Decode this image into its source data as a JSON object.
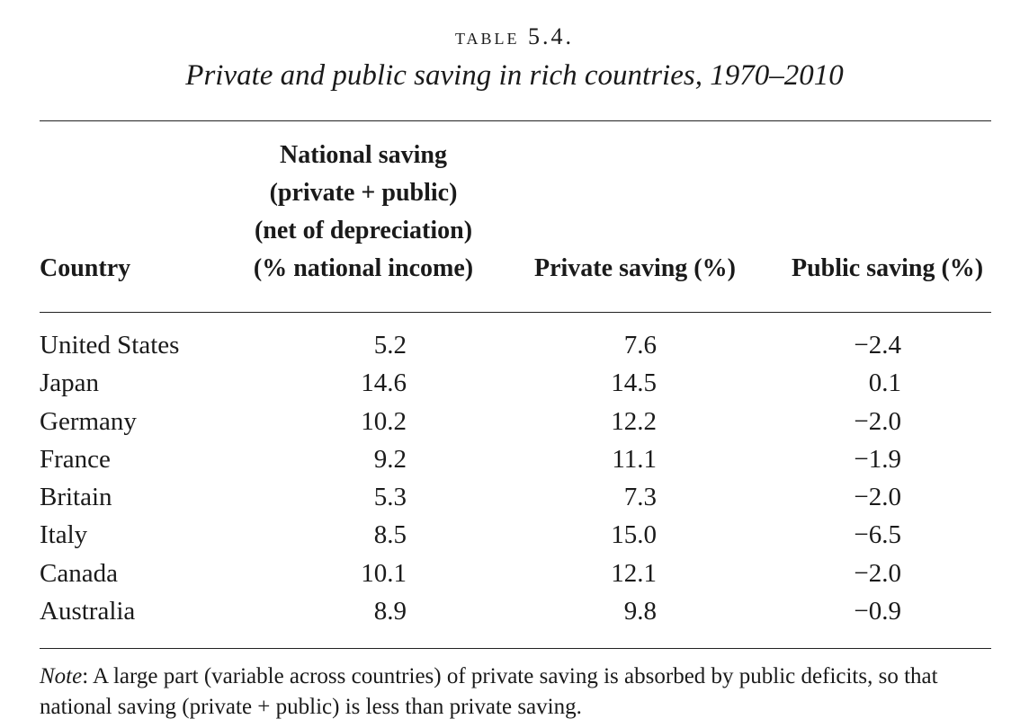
{
  "table": {
    "label": "TABLE 5.4.",
    "title": "Private and public saving in rich countries, 1970–2010",
    "headers": {
      "country": "Country",
      "national": [
        "National saving",
        "(private + public)",
        "(net of depreciation)",
        "(% national income)"
      ],
      "private": "Private saving (%)",
      "public": "Public saving (%)"
    },
    "rows": [
      {
        "country": "United States",
        "national": "5.2",
        "private": "7.6",
        "public": "−2.4"
      },
      {
        "country": "Japan",
        "national": "14.6",
        "private": "14.5",
        "public": "0.1"
      },
      {
        "country": "Germany",
        "national": "10.2",
        "private": "12.2",
        "public": "−2.0"
      },
      {
        "country": "France",
        "national": "9.2",
        "private": "11.1",
        "public": "−1.9"
      },
      {
        "country": "Britain",
        "national": "5.3",
        "private": "7.3",
        "public": "−2.0"
      },
      {
        "country": "Italy",
        "national": "8.5",
        "private": "15.0",
        "public": "−6.5"
      },
      {
        "country": "Canada",
        "national": "10.1",
        "private": "12.1",
        "public": "−2.0"
      },
      {
        "country": "Australia",
        "national": "8.9",
        "private": "9.8",
        "public": "−0.9"
      }
    ],
    "note_label": "Note",
    "note_text": ": A large part (variable across countries) of private saving is absorbed by public deficits, so that national saving (private + public) is less than private saving."
  }
}
